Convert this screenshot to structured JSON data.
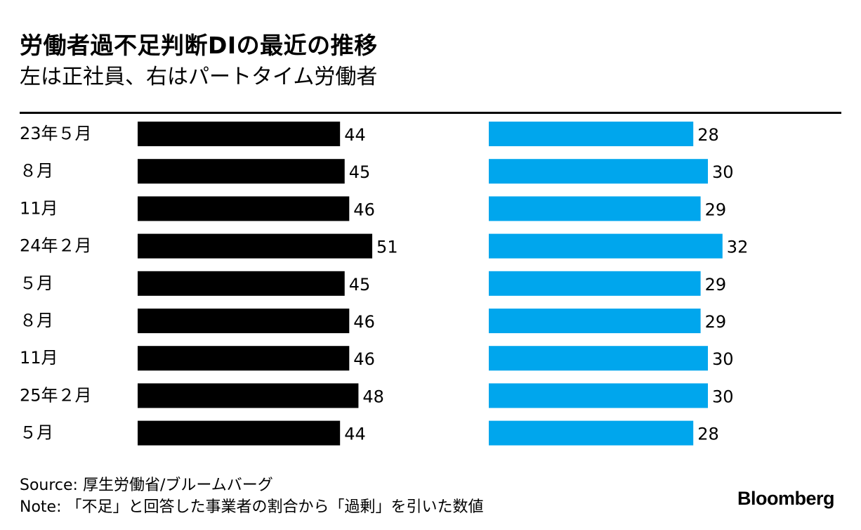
{
  "chart_data": {
    "type": "bar",
    "orientation": "horizontal",
    "title": "労働者過不足判断DIの最近の推移",
    "subtitle": "左は正社員、右はパートタイム労働者",
    "categories": [
      "23年５月",
      "８月",
      "11月",
      "24年２月",
      "５月",
      "８月",
      "11月",
      "25年２月",
      "５月"
    ],
    "series": [
      {
        "name": "正社員",
        "color": "#000000",
        "values": [
          44,
          45,
          46,
          51,
          45,
          46,
          46,
          48,
          44
        ]
      },
      {
        "name": "パートタイム労働者",
        "color": "#00A6ED",
        "values": [
          28,
          30,
          29,
          32,
          29,
          29,
          30,
          30,
          28
        ]
      }
    ],
    "xlabel": "",
    "ylabel": "",
    "grid": false,
    "legend": "none"
  },
  "footer": {
    "source": "Source: 厚生労働省/ブルームバーグ",
    "note": "Note: 「不足」と回答した事業者の割合から「過剰」を引いた数値",
    "brand": "Bloomberg"
  }
}
